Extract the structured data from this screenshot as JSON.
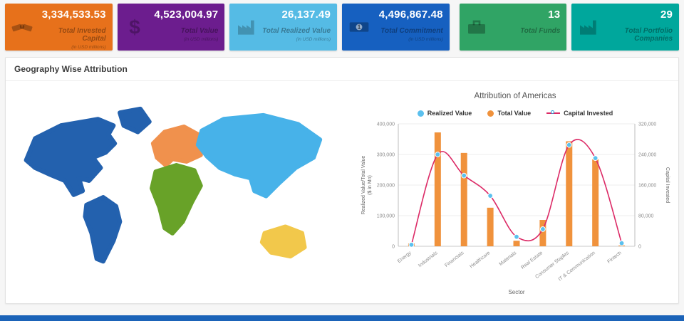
{
  "cards": [
    {
      "value": "3,334,533.53",
      "label": "Total Invested Capital",
      "sub": "(in USD millions)",
      "color": "#E7711B"
    },
    {
      "value": "4,523,004.97",
      "label": "Total Value",
      "sub": "(in USD millions)",
      "color": "#6C1D8E"
    },
    {
      "value": "26,137.49",
      "label": "Total Realized Value",
      "sub": "(in USD millions)",
      "color": "#55BBE5"
    },
    {
      "value": "4,496,867.48",
      "label": "Total Commitment",
      "sub": "(in USD millions)",
      "color": "#1660C0"
    },
    {
      "value": "13",
      "label": "Total Funds",
      "sub": "",
      "color": "#30A465"
    },
    {
      "value": "29",
      "label": "Total Portfolio Companies",
      "sub": "",
      "color": "#00A79C"
    }
  ],
  "panel": {
    "title": "Geography Wise Attribution"
  },
  "map": {
    "colors": {
      "north_america": "#2361AE",
      "greenland": "#2361AE",
      "south_america": "#2361AE",
      "europe": "#F0914D",
      "africa": "#68A228",
      "asia": "#47B2E9",
      "australia": "#F2C84B"
    }
  },
  "chart_data": {
    "type": "combo",
    "title": "Attribution of Americas",
    "xlabel": "Sector",
    "ylabel_left": "Realized Value/Total Value",
    "ylabel_left_unit": "($ in Mn)",
    "ylabel_right": "Capital Invested",
    "categories": [
      "Energy",
      "Industrials",
      "Financials",
      "Healthcare",
      "Materials",
      "Real Estate",
      "Consumer Staples",
      "IT & Communication",
      "Fintech"
    ],
    "series": [
      {
        "name": "Realized Value",
        "type": "scatter",
        "axis": "left",
        "color": "#5BC0EE",
        "values": [
          5000,
          300000,
          231000,
          165000,
          31000,
          56000,
          331000,
          288000,
          10000
        ]
      },
      {
        "name": "Total Value",
        "type": "bar",
        "axis": "left",
        "color": "#F0923C",
        "values": [
          9000,
          372000,
          305000,
          126000,
          18000,
          86000,
          343000,
          284000,
          2500
        ]
      },
      {
        "name": "Capital Invested",
        "type": "line",
        "axis": "right",
        "color": "#DC2A66",
        "values": [
          4000,
          240000,
          185000,
          132000,
          25000,
          45000,
          265000,
          230000,
          8000
        ]
      }
    ],
    "y_left": {
      "min": 0,
      "max": 400000,
      "step": 100000
    },
    "y_right": {
      "min": 0,
      "max": 320000,
      "step": 80000
    },
    "marker_stroke": "#2D9FD8",
    "legend_position": "top",
    "grid": "horizontal-light"
  },
  "footer": {
    "color": "#1B63B8"
  }
}
